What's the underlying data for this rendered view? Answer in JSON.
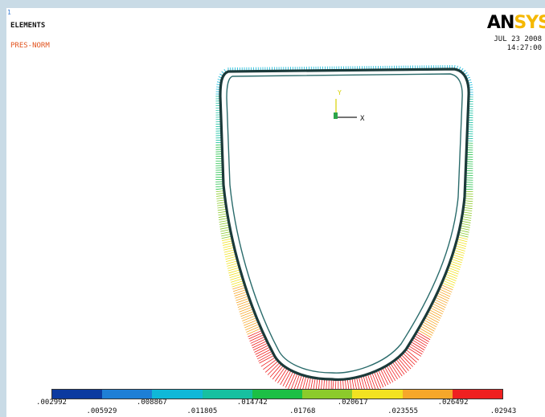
{
  "window_number": "1",
  "plot_type": "ELEMENTS",
  "result_label": "PRES-NORM",
  "date": "JUL 23 2008",
  "time": "14:27:00",
  "logo": {
    "part1": "AN",
    "part2": "SYS"
  },
  "triad": {
    "y": "Y",
    "x": "X"
  },
  "legend": {
    "colors": [
      "#0b3aa0",
      "#1e7fd6",
      "#10b8d8",
      "#17c0a0",
      "#1cbf45",
      "#8ccb2b",
      "#f2e221",
      "#f6a72a",
      "#ef2020"
    ],
    "upper_labels": [
      ".002992",
      ".008867",
      ".014742",
      ".020617",
      ".026492"
    ],
    "lower_labels": [
      ".005929",
      ".011805",
      ".01768",
      ".023555",
      ".02943"
    ]
  }
}
